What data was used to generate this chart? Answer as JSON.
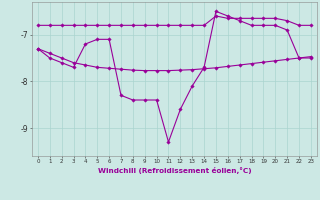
{
  "xlabel": "Windchill (Refroidissement éolien,°C)",
  "hours": [
    0,
    1,
    2,
    3,
    4,
    5,
    6,
    7,
    8,
    9,
    10,
    11,
    12,
    13,
    14,
    15,
    16,
    17,
    18,
    19,
    20,
    21,
    22,
    23
  ],
  "windchill": [
    -7.3,
    -7.5,
    -7.6,
    -7.7,
    -7.2,
    -7.1,
    -7.1,
    -8.3,
    -8.4,
    -8.4,
    -8.4,
    -9.3,
    -8.6,
    -8.1,
    -7.7,
    -6.5,
    -6.6,
    -6.7,
    -6.8,
    -6.8,
    -6.8,
    -6.9,
    -7.5,
    -7.5
  ],
  "top_line": [
    -6.8,
    -6.8,
    -6.8,
    -6.8,
    -6.8,
    -6.8,
    -6.8,
    -6.8,
    -6.8,
    -6.8,
    -6.8,
    -6.8,
    -6.8,
    -6.8,
    -6.8,
    -6.6,
    -6.65,
    -6.65,
    -6.65,
    -6.65,
    -6.65,
    -6.7,
    -6.8,
    -6.8
  ],
  "diag_line": [
    -7.3,
    -7.4,
    -7.5,
    -7.6,
    -7.65,
    -7.7,
    -7.72,
    -7.74,
    -7.76,
    -7.77,
    -7.77,
    -7.77,
    -7.76,
    -7.75,
    -7.73,
    -7.71,
    -7.68,
    -7.65,
    -7.62,
    -7.59,
    -7.56,
    -7.53,
    -7.5,
    -7.47
  ],
  "line_color": "#990099",
  "bg_color": "#cce8e4",
  "grid_color": "#aad4cf",
  "ylim": [
    -9.6,
    -6.3
  ],
  "yticks": [
    -9,
    -8,
    -7
  ],
  "xticks": [
    0,
    1,
    2,
    3,
    4,
    5,
    6,
    7,
    8,
    9,
    10,
    11,
    12,
    13,
    14,
    15,
    16,
    17,
    18,
    19,
    20,
    21,
    22,
    23
  ]
}
